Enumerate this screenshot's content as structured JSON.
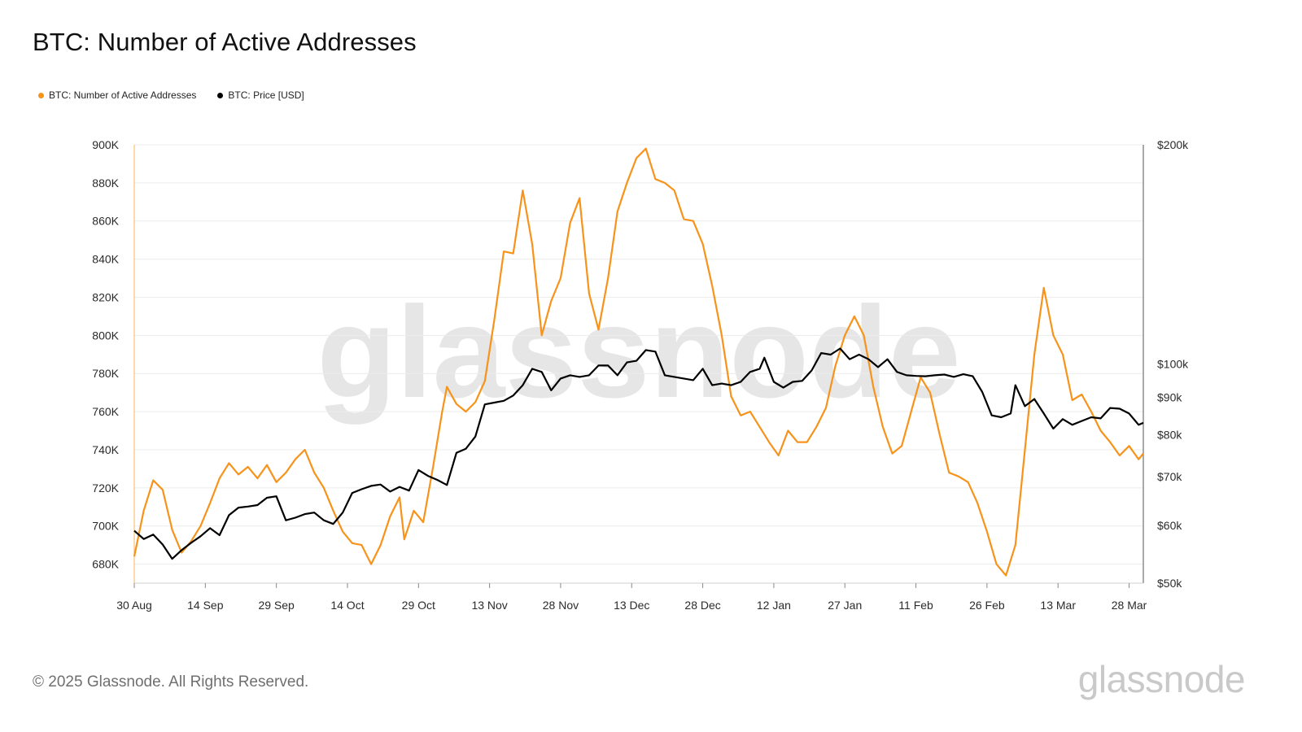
{
  "title": "BTC: Number of Active Addresses",
  "legend": {
    "addresses_label": "BTC: Number of Active Addresses",
    "price_label": "BTC: Price [USD]"
  },
  "footer": "© 2025 Glassnode. All Rights Reserved.",
  "brand": "glassnode",
  "watermark": "glassnode",
  "colors": {
    "addresses": "#f7931a",
    "price": "#000000",
    "grid": "#ececec",
    "axis_line": "#555555"
  },
  "chart_data": {
    "type": "line",
    "title": "BTC: Number of Active Addresses",
    "x_start": "2024-08-30",
    "x_end": "2025-03-31",
    "x_ticks": [
      {
        "date": "2024-08-30",
        "label": "30 Aug"
      },
      {
        "date": "2024-09-14",
        "label": "14 Sep"
      },
      {
        "date": "2024-09-29",
        "label": "29 Sep"
      },
      {
        "date": "2024-10-14",
        "label": "14 Oct"
      },
      {
        "date": "2024-10-29",
        "label": "29 Oct"
      },
      {
        "date": "2024-11-13",
        "label": "13 Nov"
      },
      {
        "date": "2024-11-28",
        "label": "28 Nov"
      },
      {
        "date": "2024-12-13",
        "label": "13 Dec"
      },
      {
        "date": "2024-12-28",
        "label": "28 Dec"
      },
      {
        "date": "2025-01-12",
        "label": "12 Jan"
      },
      {
        "date": "2025-01-27",
        "label": "27 Jan"
      },
      {
        "date": "2025-02-11",
        "label": "11 Feb"
      },
      {
        "date": "2025-02-26",
        "label": "26 Feb"
      },
      {
        "date": "2025-03-13",
        "label": "13 Mar"
      },
      {
        "date": "2025-03-28",
        "label": "28 Mar"
      }
    ],
    "left_axis": {
      "min": 670000,
      "max": 900000,
      "ticks": [
        {
          "value": 900000,
          "label": "900K"
        },
        {
          "value": 880000,
          "label": "880K"
        },
        {
          "value": 860000,
          "label": "860K"
        },
        {
          "value": 840000,
          "label": "840K"
        },
        {
          "value": 820000,
          "label": "820K"
        },
        {
          "value": 800000,
          "label": "800K"
        },
        {
          "value": 780000,
          "label": "780K"
        },
        {
          "value": 760000,
          "label": "760K"
        },
        {
          "value": 740000,
          "label": "740K"
        },
        {
          "value": 720000,
          "label": "720K"
        },
        {
          "value": 700000,
          "label": "700K"
        },
        {
          "value": 680000,
          "label": "680K"
        }
      ]
    },
    "right_axis": {
      "scale": "log",
      "min": 50000,
      "max": 200000,
      "ticks": [
        {
          "value": 200000,
          "label": "$200k"
        },
        {
          "value": 100000,
          "label": "$100k"
        },
        {
          "value": 90000,
          "label": "$90k"
        },
        {
          "value": 80000,
          "label": "$80k"
        },
        {
          "value": 70000,
          "label": "$70k"
        },
        {
          "value": 60000,
          "label": "$60k"
        },
        {
          "value": 50000,
          "label": "$50k"
        }
      ]
    },
    "grid": true,
    "legend_position": "top-left",
    "series": [
      {
        "name": "BTC: Number of Active Addresses",
        "axis": "left",
        "color": "#f7931a",
        "points": [
          [
            "2024-08-30",
            684000
          ],
          [
            "2024-09-01",
            708000
          ],
          [
            "2024-09-03",
            724000
          ],
          [
            "2024-09-05",
            719000
          ],
          [
            "2024-09-07",
            698000
          ],
          [
            "2024-09-09",
            686000
          ],
          [
            "2024-09-11",
            692000
          ],
          [
            "2024-09-13",
            700000
          ],
          [
            "2024-09-15",
            712000
          ],
          [
            "2024-09-17",
            725000
          ],
          [
            "2024-09-19",
            733000
          ],
          [
            "2024-09-21",
            727000
          ],
          [
            "2024-09-23",
            731000
          ],
          [
            "2024-09-25",
            725000
          ],
          [
            "2024-09-27",
            732000
          ],
          [
            "2024-09-29",
            723000
          ],
          [
            "2024-10-01",
            728000
          ],
          [
            "2024-10-03",
            735000
          ],
          [
            "2024-10-05",
            740000
          ],
          [
            "2024-10-07",
            728000
          ],
          [
            "2024-10-09",
            720000
          ],
          [
            "2024-10-11",
            708000
          ],
          [
            "2024-10-13",
            697000
          ],
          [
            "2024-10-15",
            691000
          ],
          [
            "2024-10-17",
            690000
          ],
          [
            "2024-10-19",
            680000
          ],
          [
            "2024-10-21",
            690000
          ],
          [
            "2024-10-23",
            705000
          ],
          [
            "2024-10-25",
            715000
          ],
          [
            "2024-10-26",
            693000
          ],
          [
            "2024-10-28",
            708000
          ],
          [
            "2024-10-30",
            702000
          ],
          [
            "2024-11-01",
            730000
          ],
          [
            "2024-11-03",
            760000
          ],
          [
            "2024-11-04",
            773000
          ],
          [
            "2024-11-06",
            764000
          ],
          [
            "2024-11-08",
            760000
          ],
          [
            "2024-11-10",
            765000
          ],
          [
            "2024-11-12",
            776000
          ],
          [
            "2024-11-14",
            808000
          ],
          [
            "2024-11-16",
            844000
          ],
          [
            "2024-11-18",
            843000
          ],
          [
            "2024-11-20",
            876000
          ],
          [
            "2024-11-22",
            848000
          ],
          [
            "2024-11-24",
            800000
          ],
          [
            "2024-11-26",
            818000
          ],
          [
            "2024-11-28",
            830000
          ],
          [
            "2024-11-30",
            859000
          ],
          [
            "2024-12-02",
            872000
          ],
          [
            "2024-12-04",
            822000
          ],
          [
            "2024-12-06",
            803000
          ],
          [
            "2024-12-08",
            830000
          ],
          [
            "2024-12-10",
            865000
          ],
          [
            "2024-12-12",
            880000
          ],
          [
            "2024-12-14",
            893000
          ],
          [
            "2024-12-16",
            898000
          ],
          [
            "2024-12-18",
            882000
          ],
          [
            "2024-12-20",
            880000
          ],
          [
            "2024-12-22",
            876000
          ],
          [
            "2024-12-24",
            861000
          ],
          [
            "2024-12-26",
            860000
          ],
          [
            "2024-12-28",
            848000
          ],
          [
            "2024-12-30",
            826000
          ],
          [
            "2025-01-01",
            800000
          ],
          [
            "2025-01-03",
            768000
          ],
          [
            "2025-01-05",
            758000
          ],
          [
            "2025-01-07",
            760000
          ],
          [
            "2025-01-09",
            752000
          ],
          [
            "2025-01-11",
            744000
          ],
          [
            "2025-01-13",
            737000
          ],
          [
            "2025-01-15",
            750000
          ],
          [
            "2025-01-17",
            744000
          ],
          [
            "2025-01-19",
            744000
          ],
          [
            "2025-01-21",
            752000
          ],
          [
            "2025-01-23",
            762000
          ],
          [
            "2025-01-25",
            784000
          ],
          [
            "2025-01-27",
            800000
          ],
          [
            "2025-01-29",
            810000
          ],
          [
            "2025-01-31",
            800000
          ],
          [
            "2025-02-02",
            773000
          ],
          [
            "2025-02-04",
            752000
          ],
          [
            "2025-02-06",
            738000
          ],
          [
            "2025-02-08",
            742000
          ],
          [
            "2025-02-10",
            760000
          ],
          [
            "2025-02-12",
            778000
          ],
          [
            "2025-02-14",
            770000
          ],
          [
            "2025-02-16",
            748000
          ],
          [
            "2025-02-18",
            728000
          ],
          [
            "2025-02-20",
            726000
          ],
          [
            "2025-02-22",
            723000
          ],
          [
            "2025-02-24",
            712000
          ],
          [
            "2025-02-26",
            697000
          ],
          [
            "2025-02-28",
            680000
          ],
          [
            "2025-03-02",
            674000
          ],
          [
            "2025-03-04",
            690000
          ],
          [
            "2025-03-06",
            740000
          ],
          [
            "2025-03-08",
            790000
          ],
          [
            "2025-03-10",
            825000
          ],
          [
            "2025-03-12",
            800000
          ],
          [
            "2025-03-14",
            790000
          ],
          [
            "2025-03-16",
            766000
          ],
          [
            "2025-03-18",
            769000
          ],
          [
            "2025-03-20",
            760000
          ],
          [
            "2025-03-22",
            750000
          ],
          [
            "2025-03-24",
            744000
          ],
          [
            "2025-03-26",
            737000
          ],
          [
            "2025-03-28",
            742000
          ],
          [
            "2025-03-30",
            735000
          ],
          [
            "2025-03-31",
            738000
          ]
        ]
      },
      {
        "name": "BTC: Price [USD]",
        "axis": "right",
        "color": "#000000",
        "points": [
          [
            "2024-08-30",
            59000
          ],
          [
            "2024-09-01",
            57500
          ],
          [
            "2024-09-03",
            58300
          ],
          [
            "2024-09-05",
            56500
          ],
          [
            "2024-09-07",
            54000
          ],
          [
            "2024-09-09",
            55500
          ],
          [
            "2024-09-11",
            56800
          ],
          [
            "2024-09-13",
            58000
          ],
          [
            "2024-09-15",
            59500
          ],
          [
            "2024-09-17",
            58200
          ],
          [
            "2024-09-19",
            62000
          ],
          [
            "2024-09-21",
            63500
          ],
          [
            "2024-09-23",
            63700
          ],
          [
            "2024-09-25",
            64000
          ],
          [
            "2024-09-27",
            65500
          ],
          [
            "2024-09-29",
            65800
          ],
          [
            "2024-10-01",
            61000
          ],
          [
            "2024-10-03",
            61500
          ],
          [
            "2024-10-05",
            62200
          ],
          [
            "2024-10-07",
            62500
          ],
          [
            "2024-10-09",
            61000
          ],
          [
            "2024-10-11",
            60300
          ],
          [
            "2024-10-13",
            62500
          ],
          [
            "2024-10-15",
            66500
          ],
          [
            "2024-10-17",
            67300
          ],
          [
            "2024-10-19",
            68000
          ],
          [
            "2024-10-21",
            68300
          ],
          [
            "2024-10-23",
            66800
          ],
          [
            "2024-10-25",
            67800
          ],
          [
            "2024-10-27",
            67000
          ],
          [
            "2024-10-29",
            71500
          ],
          [
            "2024-10-31",
            70200
          ],
          [
            "2024-11-02",
            69300
          ],
          [
            "2024-11-04",
            68200
          ],
          [
            "2024-11-06",
            75500
          ],
          [
            "2024-11-08",
            76500
          ],
          [
            "2024-11-10",
            79500
          ],
          [
            "2024-11-12",
            88000
          ],
          [
            "2024-11-14",
            88500
          ],
          [
            "2024-11-16",
            89000
          ],
          [
            "2024-11-18",
            90500
          ],
          [
            "2024-11-20",
            93500
          ],
          [
            "2024-11-22",
            98500
          ],
          [
            "2024-11-24",
            97500
          ],
          [
            "2024-11-26",
            92000
          ],
          [
            "2024-11-28",
            95500
          ],
          [
            "2024-11-30",
            96500
          ],
          [
            "2024-12-02",
            96000
          ],
          [
            "2024-12-04",
            96500
          ],
          [
            "2024-12-06",
            99500
          ],
          [
            "2024-12-08",
            99500
          ],
          [
            "2024-12-10",
            96500
          ],
          [
            "2024-12-12",
            100500
          ],
          [
            "2024-12-14",
            101000
          ],
          [
            "2024-12-16",
            104500
          ],
          [
            "2024-12-18",
            104000
          ],
          [
            "2024-12-20",
            96500
          ],
          [
            "2024-12-22",
            96000
          ],
          [
            "2024-12-24",
            95500
          ],
          [
            "2024-12-26",
            95000
          ],
          [
            "2024-12-28",
            98500
          ],
          [
            "2024-12-30",
            93500
          ],
          [
            "2025-01-01",
            94000
          ],
          [
            "2025-01-03",
            93500
          ],
          [
            "2025-01-05",
            94500
          ],
          [
            "2025-01-07",
            97500
          ],
          [
            "2025-01-09",
            98500
          ],
          [
            "2025-01-10",
            102000
          ],
          [
            "2025-01-12",
            94500
          ],
          [
            "2025-01-14",
            92800
          ],
          [
            "2025-01-16",
            94500
          ],
          [
            "2025-01-18",
            94800
          ],
          [
            "2025-01-20",
            98000
          ],
          [
            "2025-01-22",
            103500
          ],
          [
            "2025-01-24",
            103000
          ],
          [
            "2025-01-26",
            105000
          ],
          [
            "2025-01-28",
            101500
          ],
          [
            "2025-01-30",
            103000
          ],
          [
            "2025-02-01",
            101500
          ],
          [
            "2025-02-03",
            99000
          ],
          [
            "2025-02-05",
            101500
          ],
          [
            "2025-02-07",
            97500
          ],
          [
            "2025-02-09",
            96500
          ],
          [
            "2025-02-11",
            96300
          ],
          [
            "2025-02-13",
            96200
          ],
          [
            "2025-02-15",
            96500
          ],
          [
            "2025-02-17",
            96700
          ],
          [
            "2025-02-19",
            96000
          ],
          [
            "2025-02-21",
            96800
          ],
          [
            "2025-02-23",
            96200
          ],
          [
            "2025-02-25",
            91500
          ],
          [
            "2025-02-27",
            85000
          ],
          [
            "2025-03-01",
            84500
          ],
          [
            "2025-03-03",
            85500
          ],
          [
            "2025-03-04",
            93500
          ],
          [
            "2025-03-06",
            87500
          ],
          [
            "2025-03-08",
            89500
          ],
          [
            "2025-03-10",
            85500
          ],
          [
            "2025-03-12",
            81500
          ],
          [
            "2025-03-14",
            84000
          ],
          [
            "2025-03-16",
            82500
          ],
          [
            "2025-03-18",
            83500
          ],
          [
            "2025-03-20",
            84500
          ],
          [
            "2025-03-22",
            84200
          ],
          [
            "2025-03-24",
            87000
          ],
          [
            "2025-03-26",
            86800
          ],
          [
            "2025-03-28",
            85500
          ],
          [
            "2025-03-30",
            82500
          ],
          [
            "2025-03-31",
            83000
          ]
        ]
      }
    ]
  }
}
